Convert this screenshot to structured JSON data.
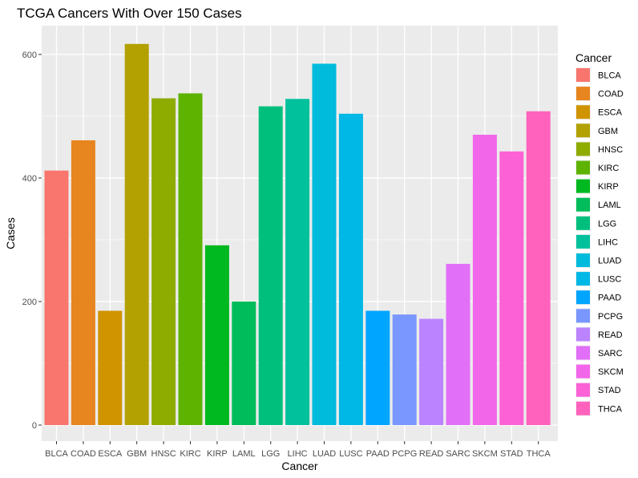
{
  "chart_data": {
    "type": "bar",
    "title": "TCGA Cancers With Over 150 Cases",
    "xlabel": "Cancer",
    "ylabel": "Cases",
    "ylim": [
      0,
      640
    ],
    "yticks": [
      0,
      200,
      400,
      600
    ],
    "grid": true,
    "legend_title": "Cancer",
    "legend_placement": "right",
    "categories": [
      "BLCA",
      "COAD",
      "ESCA",
      "GBM",
      "HNSC",
      "KIRC",
      "KIRP",
      "LAML",
      "LGG",
      "LIHC",
      "LUAD",
      "LUSC",
      "PAAD",
      "PCPG",
      "READ",
      "SARC",
      "SKCM",
      "STAD",
      "THCA"
    ],
    "values": [
      412,
      461,
      185,
      617,
      529,
      537,
      291,
      200,
      516,
      528,
      585,
      504,
      185,
      179,
      172,
      261,
      470,
      443,
      508
    ],
    "colors": [
      "#F8766D",
      "#E7851E",
      "#D09400",
      "#B2A100",
      "#8EAB00",
      "#5DB300",
      "#00B81F",
      "#00BC5A",
      "#00BF7D",
      "#00C19C",
      "#00BBDB",
      "#00B8E5",
      "#00A5FF",
      "#7997FF",
      "#BB83FF",
      "#E16FF8",
      "#F266E9",
      "#FC61D5",
      "#FF62BC"
    ]
  }
}
